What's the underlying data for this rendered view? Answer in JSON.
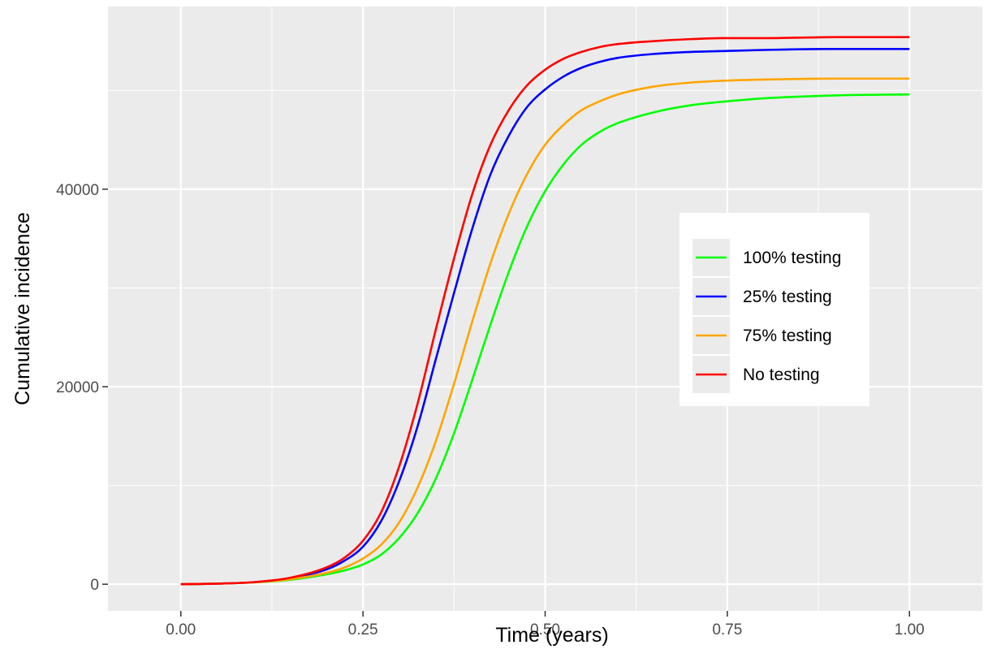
{
  "chart_data": {
    "type": "line",
    "title": "",
    "xlabel": "Time (years)",
    "ylabel": "Cumulative incidence",
    "xlim": [
      -0.1,
      1.1
    ],
    "ylim": [
      -2700,
      58500
    ],
    "x_ticks": [
      0.0,
      0.25,
      0.5,
      0.75,
      1.0
    ],
    "x_tick_labels": [
      "0.00",
      "0.25",
      "0.50",
      "0.75",
      "1.00"
    ],
    "y_ticks": [
      0,
      20000,
      40000
    ],
    "y_tick_labels": [
      "0",
      "20000",
      "40000"
    ],
    "grid": true,
    "legend_position": "right",
    "x": [
      0.0,
      0.05,
      0.1,
      0.15,
      0.2,
      0.225,
      0.25,
      0.275,
      0.3,
      0.325,
      0.35,
      0.375,
      0.4,
      0.425,
      0.45,
      0.475,
      0.5,
      0.525,
      0.55,
      0.575,
      0.6,
      0.65,
      0.7,
      0.75,
      0.8,
      0.9,
      1.0
    ],
    "series": [
      {
        "name": "100% testing",
        "color": "#00ff00",
        "values": [
          0,
          60,
          180,
          450,
          1000,
          1400,
          2000,
          3000,
          4700,
          7200,
          10700,
          15300,
          20700,
          26300,
          31600,
          36200,
          39800,
          42500,
          44500,
          45800,
          46700,
          47800,
          48500,
          48900,
          49200,
          49500,
          49600
        ]
      },
      {
        "name": "25% testing",
        "color": "#0000ff",
        "values": [
          0,
          60,
          200,
          600,
          1500,
          2400,
          3800,
          6400,
          10500,
          16000,
          22800,
          29500,
          36000,
          41500,
          45400,
          48300,
          50100,
          51400,
          52300,
          52900,
          53300,
          53700,
          53900,
          54000,
          54100,
          54200,
          54200
        ]
      },
      {
        "name": "75% testing",
        "color": "#ffa500",
        "values": [
          0,
          60,
          190,
          500,
          1150,
          1700,
          2600,
          4000,
          6300,
          9800,
          14500,
          20300,
          26600,
          32500,
          37500,
          41500,
          44500,
          46500,
          48000,
          48900,
          49600,
          50400,
          50800,
          51000,
          51100,
          51200,
          51200
        ]
      },
      {
        "name": "No testing",
        "color": "#ff0000",
        "values": [
          0,
          60,
          210,
          650,
          1700,
          2700,
          4400,
          7300,
          12000,
          18300,
          25800,
          33000,
          39500,
          44500,
          48000,
          50500,
          52100,
          53200,
          53900,
          54400,
          54700,
          55000,
          55200,
          55300,
          55300,
          55400,
          55400
        ]
      }
    ]
  }
}
